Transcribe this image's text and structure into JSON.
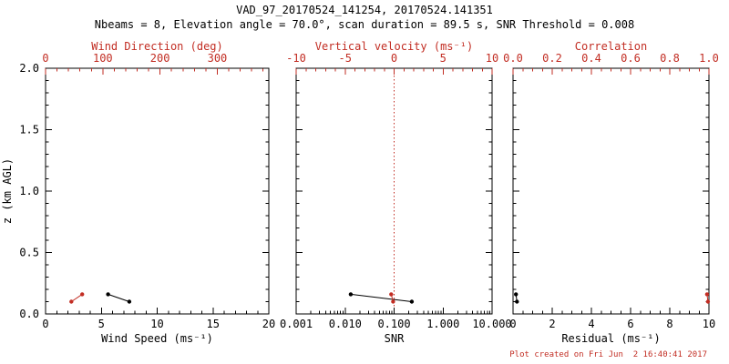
{
  "colors": {
    "red": "#c22d23",
    "black": "#000000",
    "background": "#ffffff"
  },
  "chart_data": {
    "type": "line",
    "title": "VAD_97_20170524_141254, 20170524.141351",
    "subtitle": "Nbeams = 8, Elevation angle = 70.0°, scan duration = 89.5 s, SNR Threshold = 0.008",
    "annotation": "Plot created on Fri Jun  2 16:40:41 2017",
    "ylabel": "z (km AGL)",
    "ylim": [
      0.0,
      2.0
    ],
    "yticks": [
      0.0,
      0.5,
      1.0,
      1.5,
      2.0
    ],
    "ytick_labels": [
      "0.0",
      "0.5",
      "1.0",
      "1.5",
      "2.0"
    ],
    "yminor_step": 0.1,
    "grid": false,
    "legend": false,
    "panels": [
      {
        "id": "wind",
        "bottom_axis": {
          "label": "Wind Speed (ms⁻¹)",
          "scale": "linear",
          "lim": [
            0,
            20
          ],
          "ticks": [
            0,
            5,
            10,
            15,
            20
          ],
          "tick_labels": [
            "0",
            "5",
            "10",
            "15",
            "20"
          ],
          "minor_step": 1,
          "color": "black"
        },
        "top_axis": {
          "label": "Wind Direction (deg)",
          "scale": "linear",
          "lim": [
            0,
            390
          ],
          "ticks": [
            0,
            100,
            200,
            300
          ],
          "tick_labels": [
            "0",
            "100",
            "200",
            "300"
          ],
          "minor_step": 20,
          "color": "red"
        },
        "series": [
          {
            "name": "wind-speed",
            "axis": "bottom",
            "color": "black",
            "points": [
              {
                "x": 7.5,
                "z": 0.1
              },
              {
                "x": 5.6,
                "z": 0.16
              }
            ]
          },
          {
            "name": "wind-direction",
            "axis": "top",
            "color": "red",
            "points": [
              {
                "x": 45,
                "z": 0.1
              },
              {
                "x": 64,
                "z": 0.16
              }
            ]
          }
        ]
      },
      {
        "id": "snr",
        "bottom_axis": {
          "label": "SNR",
          "scale": "log",
          "lim": [
            0.001,
            10
          ],
          "ticks": [
            0.001,
            0.01,
            0.1,
            1,
            10
          ],
          "tick_labels": [
            "0.001",
            "0.010",
            "0.100",
            "1.000",
            "10.000"
          ],
          "color": "black"
        },
        "top_axis": {
          "label": "Vertical velocity (ms⁻¹)",
          "scale": "linear",
          "lim": [
            -10,
            10
          ],
          "ticks": [
            -10,
            -5,
            0,
            5,
            10
          ],
          "tick_labels": [
            "-10",
            "-5",
            "0",
            "5",
            "10"
          ],
          "minor_step": 1,
          "color": "red"
        },
        "refline": {
          "axis": "top",
          "value": 0,
          "color": "red",
          "style": "dotted"
        },
        "series": [
          {
            "name": "snr",
            "axis": "bottom",
            "color": "black",
            "points": [
              {
                "x": 0.23,
                "z": 0.1
              },
              {
                "x": 0.013,
                "z": 0.16
              }
            ]
          },
          {
            "name": "vertical-velocity",
            "axis": "top",
            "color": "red",
            "points": [
              {
                "x": -0.1,
                "z": 0.1
              },
              {
                "x": -0.3,
                "z": 0.16
              }
            ]
          }
        ]
      },
      {
        "id": "residual",
        "bottom_axis": {
          "label": "Residual (ms⁻¹)",
          "scale": "linear",
          "lim": [
            0,
            10
          ],
          "ticks": [
            0,
            2,
            4,
            6,
            8,
            10
          ],
          "tick_labels": [
            "0",
            "2",
            "4",
            "6",
            "8",
            "10"
          ],
          "minor_step": 0.5,
          "color": "black"
        },
        "top_axis": {
          "label": "Correlation",
          "scale": "linear",
          "lim": [
            0,
            1
          ],
          "ticks": [
            0,
            0.2,
            0.4,
            0.6,
            0.8,
            1.0
          ],
          "tick_labels": [
            "0.0",
            "0.2",
            "0.4",
            "0.6",
            "0.8",
            "1.0"
          ],
          "minor_step": 0.05,
          "color": "red"
        },
        "series": [
          {
            "name": "residual",
            "axis": "bottom",
            "color": "black",
            "points": [
              {
                "x": 0.2,
                "z": 0.1
              },
              {
                "x": 0.15,
                "z": 0.16
              }
            ]
          },
          {
            "name": "correlation",
            "axis": "top",
            "color": "red",
            "points": [
              {
                "x": 0.995,
                "z": 0.1
              },
              {
                "x": 0.99,
                "z": 0.16
              }
            ]
          }
        ]
      }
    ]
  }
}
